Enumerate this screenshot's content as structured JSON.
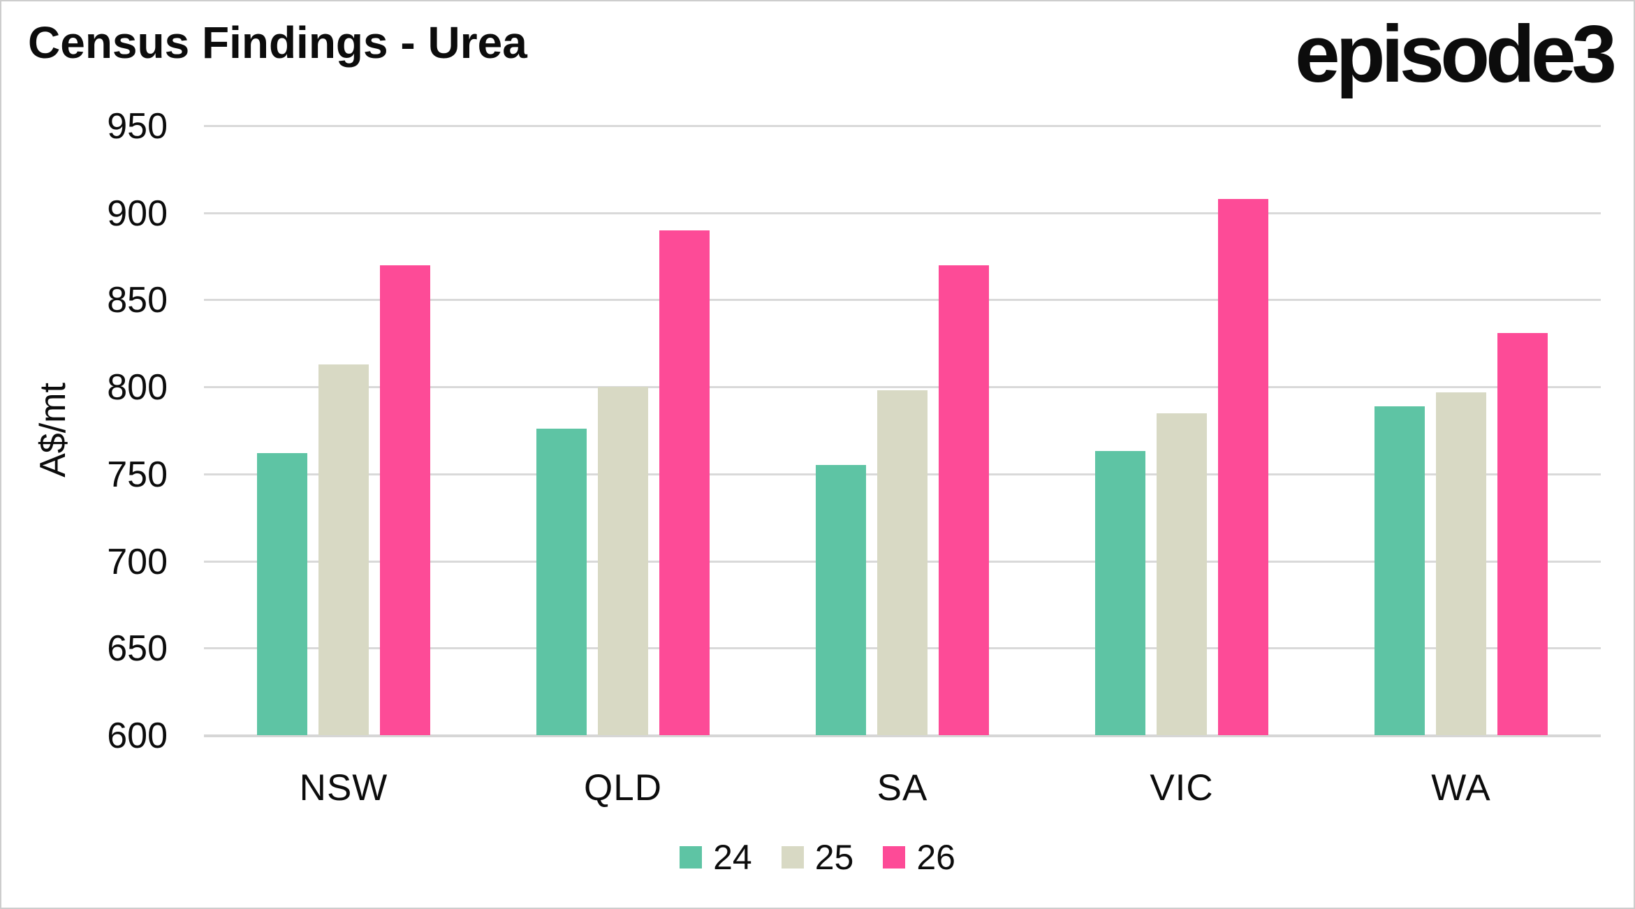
{
  "header": {
    "title": "Census Findings - Urea",
    "logo": "episode3"
  },
  "chart_data": {
    "type": "bar",
    "title": "Census Findings - Urea",
    "categories": [
      "NSW",
      "QLD",
      "SA",
      "VIC",
      "WA"
    ],
    "series": [
      {
        "name": "24",
        "color": "#5EC4A4",
        "values": [
          762,
          776,
          755,
          763,
          789
        ]
      },
      {
        "name": "25",
        "color": "#D8D9C4",
        "values": [
          813,
          800,
          798,
          785,
          797
        ]
      },
      {
        "name": "26",
        "color": "#FD4B97",
        "values": [
          870,
          890,
          870,
          908,
          831
        ]
      }
    ],
    "ylabel": "A$/mt",
    "ylim": [
      600,
      950
    ],
    "yticks": [
      950,
      900,
      850,
      800,
      750,
      700,
      650,
      600
    ],
    "grid": true,
    "legend_position": "bottom",
    "gridline_color": "#d9d9d9"
  }
}
